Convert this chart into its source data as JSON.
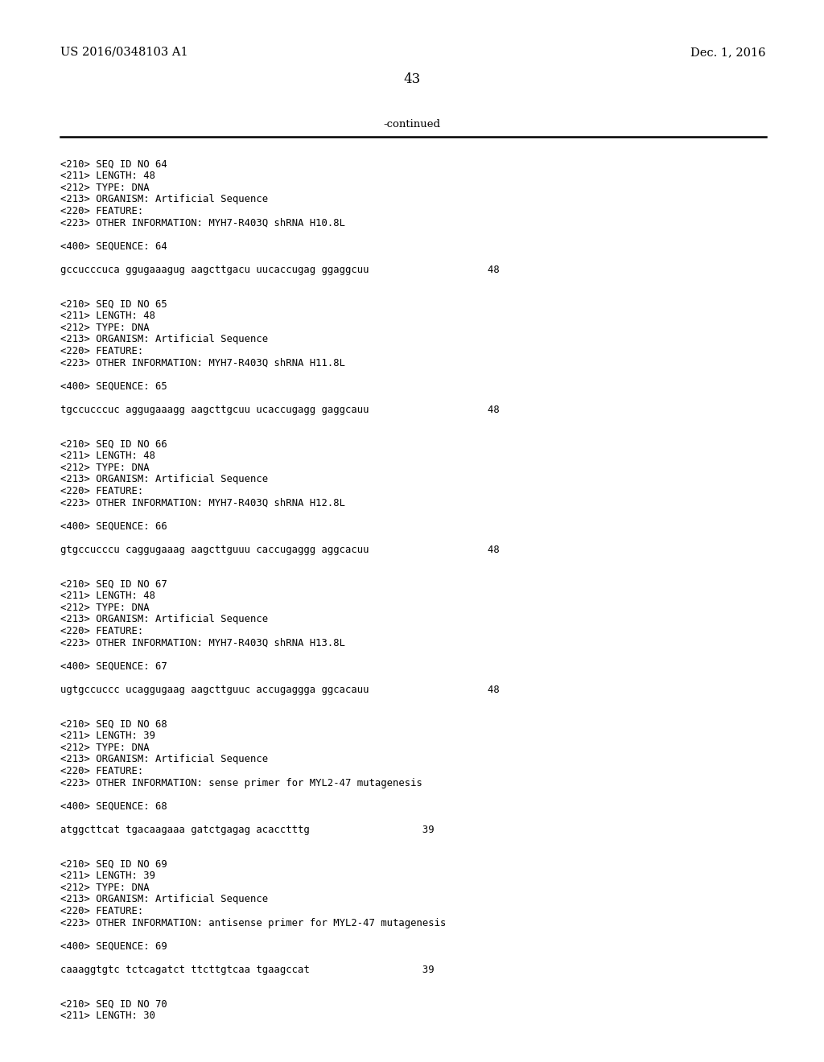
{
  "header_left": "US 2016/0348103 A1",
  "header_right": "Dec. 1, 2016",
  "page_number": "43",
  "continued_text": "-continued",
  "background_color": "#ffffff",
  "text_color": "#000000",
  "lines": [
    "<210> SEQ ID NO 64",
    "<211> LENGTH: 48",
    "<212> TYPE: DNA",
    "<213> ORGANISM: Artificial Sequence",
    "<220> FEATURE:",
    "<223> OTHER INFORMATION: MYH7-R403Q shRNA H10.8L",
    "",
    "<400> SEQUENCE: 64",
    "",
    "gccucccuca ggugaaagug aagcttgacu uucaccugag ggaggcuu                    48",
    "",
    "",
    "<210> SEQ ID NO 65",
    "<211> LENGTH: 48",
    "<212> TYPE: DNA",
    "<213> ORGANISM: Artificial Sequence",
    "<220> FEATURE:",
    "<223> OTHER INFORMATION: MYH7-R403Q shRNA H11.8L",
    "",
    "<400> SEQUENCE: 65",
    "",
    "tgccucccuc aggugaaagg aagcttgcuu ucaccugagg gaggcauu                    48",
    "",
    "",
    "<210> SEQ ID NO 66",
    "<211> LENGTH: 48",
    "<212> TYPE: DNA",
    "<213> ORGANISM: Artificial Sequence",
    "<220> FEATURE:",
    "<223> OTHER INFORMATION: MYH7-R403Q shRNA H12.8L",
    "",
    "<400> SEQUENCE: 66",
    "",
    "gtgccucccu caggugaaag aagcttguuu caccugaggg aggcacuu                    48",
    "",
    "",
    "<210> SEQ ID NO 67",
    "<211> LENGTH: 48",
    "<212> TYPE: DNA",
    "<213> ORGANISM: Artificial Sequence",
    "<220> FEATURE:",
    "<223> OTHER INFORMATION: MYH7-R403Q shRNA H13.8L",
    "",
    "<400> SEQUENCE: 67",
    "",
    "ugtgccuccc ucaggugaag aagcttguuc accugaggga ggcacauu                    48",
    "",
    "",
    "<210> SEQ ID NO 68",
    "<211> LENGTH: 39",
    "<212> TYPE: DNA",
    "<213> ORGANISM: Artificial Sequence",
    "<220> FEATURE:",
    "<223> OTHER INFORMATION: sense primer for MYL2-47 mutagenesis",
    "",
    "<400> SEQUENCE: 68",
    "",
    "atggcttcat tgacaagaaa gatctgagag acacctttg                   39",
    "",
    "",
    "<210> SEQ ID NO 69",
    "<211> LENGTH: 39",
    "<212> TYPE: DNA",
    "<213> ORGANISM: Artificial Sequence",
    "<220> FEATURE:",
    "<223> OTHER INFORMATION: antisense primer for MYL2-47 mutagenesis",
    "",
    "<400> SEQUENCE: 69",
    "",
    "caaaggtgtc tctcagatct ttcttgtcaa tgaagccat                   39",
    "",
    "",
    "<210> SEQ ID NO 70",
    "<211> LENGTH: 30"
  ]
}
